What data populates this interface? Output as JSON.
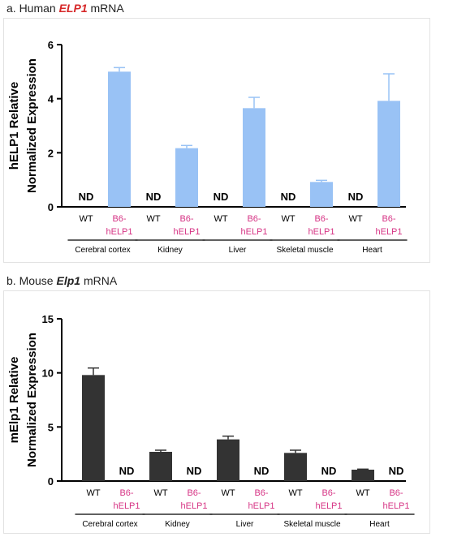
{
  "panel_a": {
    "title_prefix": "a. Human ",
    "title_gene": "ELP1",
    "title_suffix": " mRNA"
  },
  "panel_b": {
    "title_prefix": "b. Mouse ",
    "title_gene": "Elp1",
    "title_suffix": " mRNA"
  },
  "colors": {
    "human_bar": "#99c2f5",
    "human_error": "#99c2f5",
    "mouse_bar": "#333333",
    "mouse_error": "#333333",
    "b6_label": "#d63384",
    "wt_label": "#000000",
    "axis": "#000000"
  },
  "chart_data": [
    {
      "type": "bar",
      "ylabel_line1": "hELP1 Relative",
      "ylabel_line2": "Normalized Expression",
      "ylim": [
        0,
        6
      ],
      "yticks": [
        0,
        2,
        4,
        6
      ],
      "tissues": [
        "Cerebral cortex",
        "Kidney",
        "Liver",
        "Skeletal muscle",
        "Heart"
      ],
      "group_labels": [
        "WT",
        "B6-\nhELP1"
      ],
      "values": [
        [
          null,
          5.0
        ],
        [
          null,
          2.17
        ],
        [
          null,
          3.65
        ],
        [
          null,
          0.92
        ],
        [
          null,
          3.92
        ]
      ],
      "errors": [
        [
          null,
          0.15
        ],
        [
          null,
          0.1
        ],
        [
          null,
          0.4
        ],
        [
          null,
          0.06
        ],
        [
          null,
          1.0
        ]
      ],
      "nd_label": "ND"
    },
    {
      "type": "bar",
      "ylabel_line1": "mElp1 Relative",
      "ylabel_line2": "Normalized Expression",
      "ylim": [
        0,
        15
      ],
      "yticks": [
        0,
        5,
        10,
        15
      ],
      "tissues": [
        "Cerebral cortex",
        "Kidney",
        "Liver",
        "Skeletal muscle",
        "Heart"
      ],
      "group_labels": [
        "WT",
        "B6-\nhELP1"
      ],
      "values": [
        [
          9.8,
          null
        ],
        [
          2.7,
          null
        ],
        [
          3.85,
          null
        ],
        [
          2.6,
          null
        ],
        [
          1.05,
          null
        ]
      ],
      "errors": [
        [
          0.65,
          null
        ],
        [
          0.15,
          null
        ],
        [
          0.3,
          null
        ],
        [
          0.25,
          null
        ],
        [
          0.05,
          null
        ]
      ],
      "nd_label": "ND"
    }
  ]
}
